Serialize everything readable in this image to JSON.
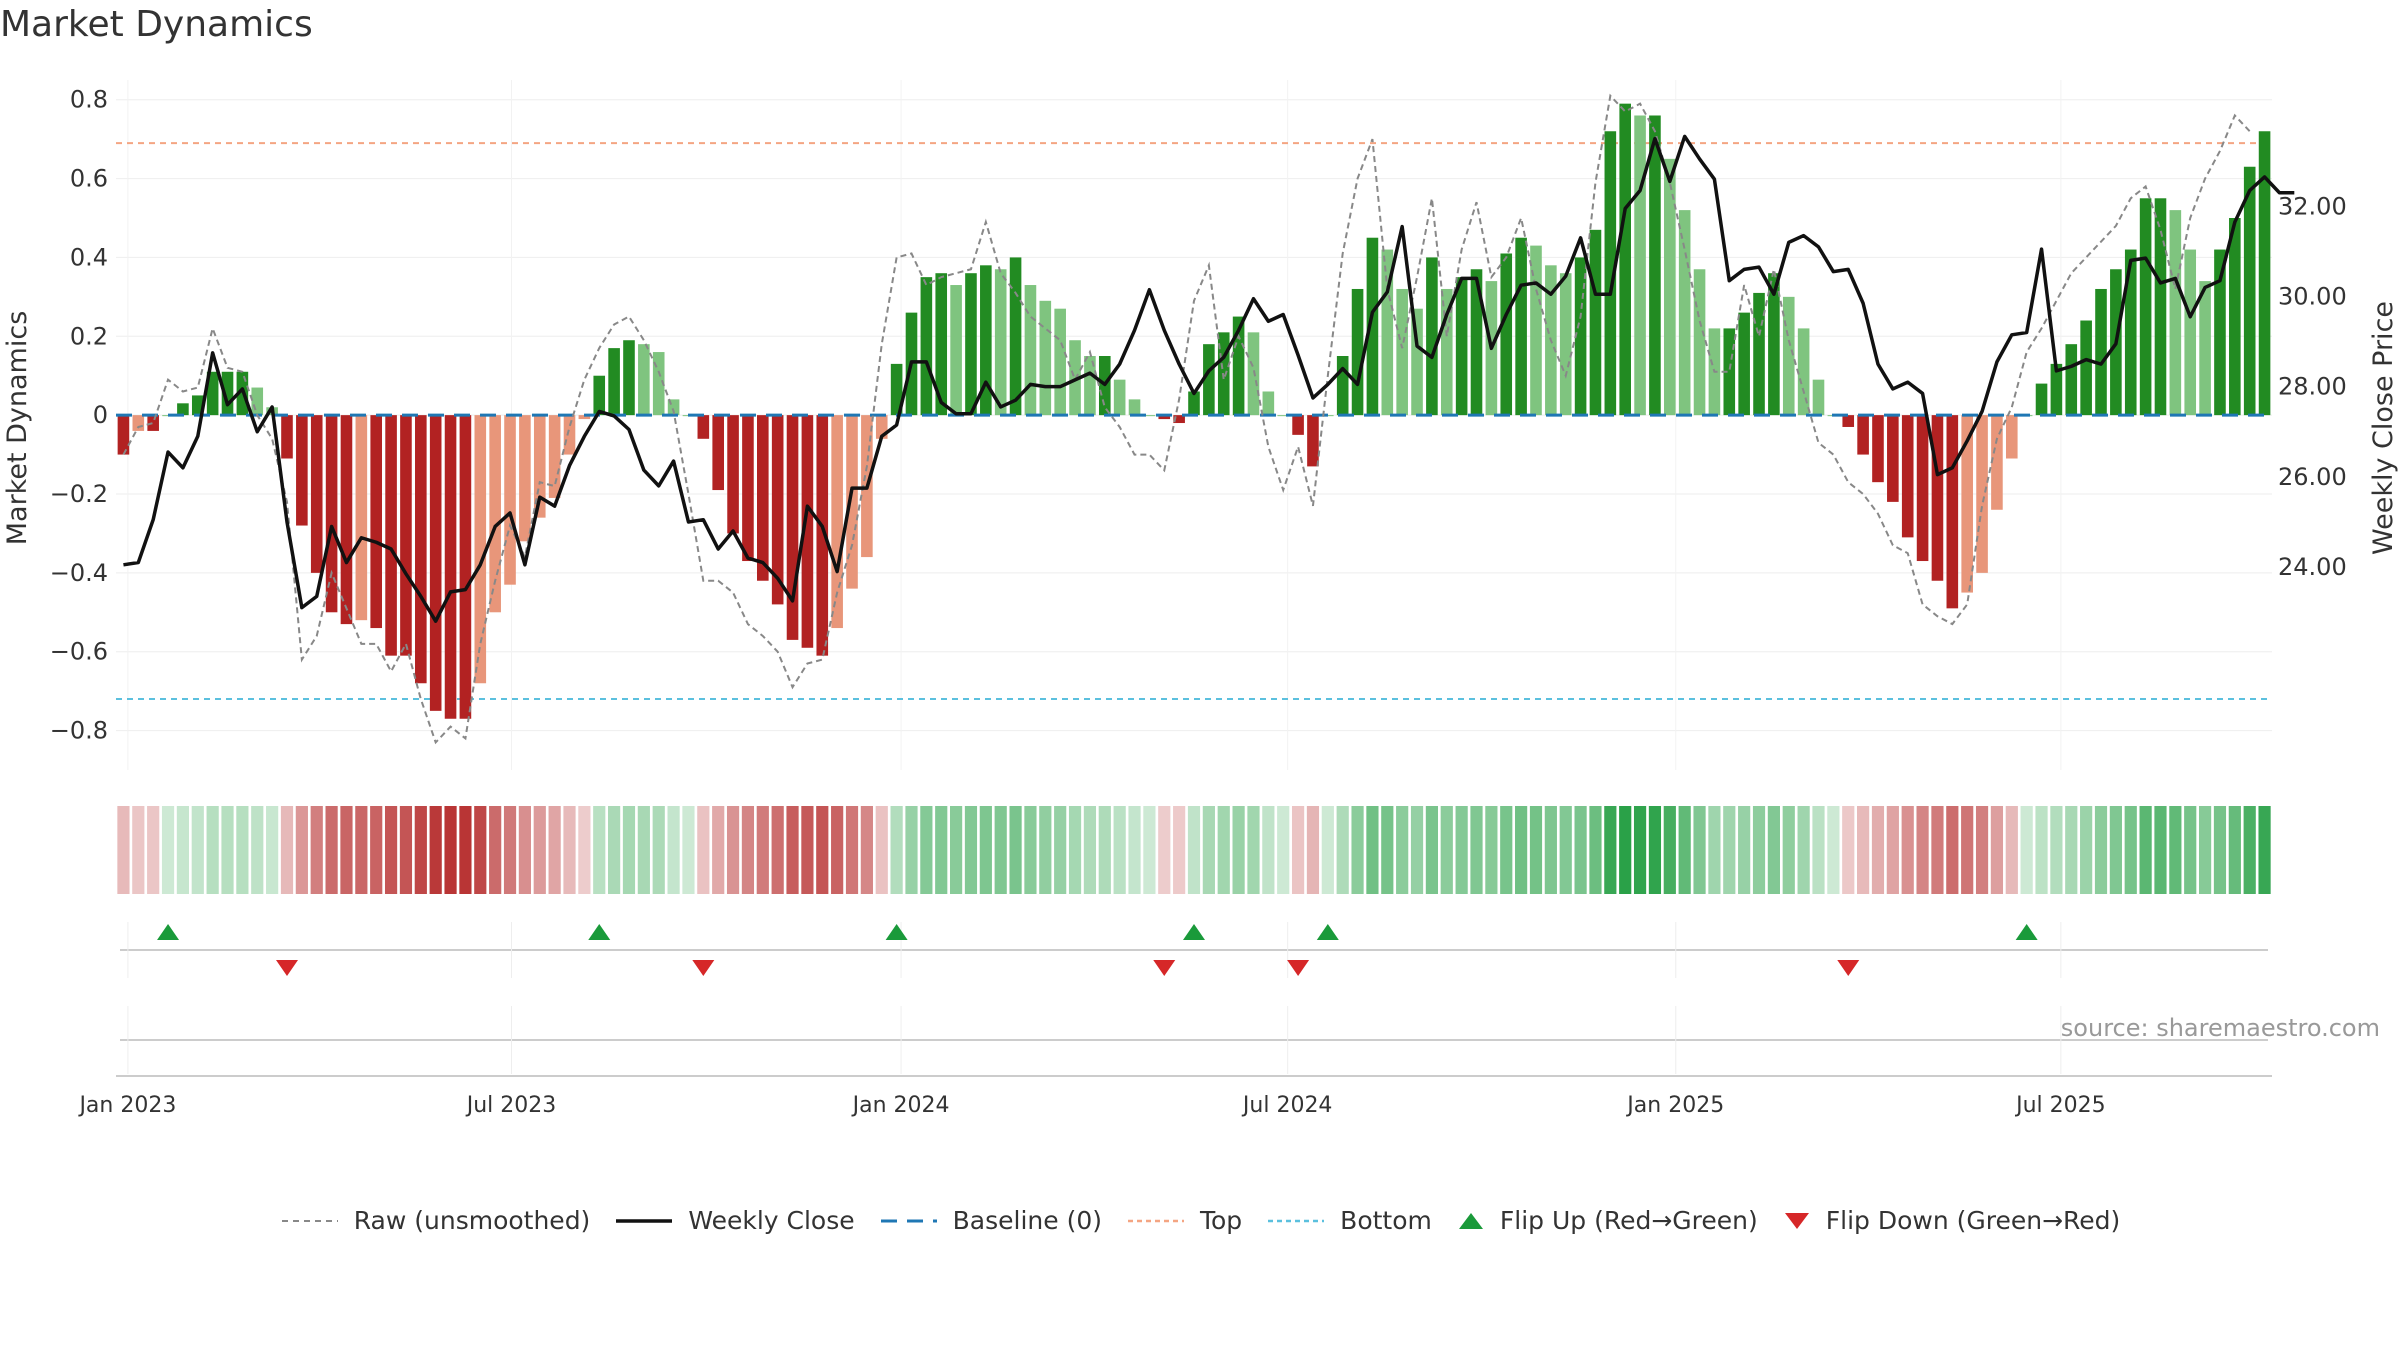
{
  "title": "Market Dynamics",
  "source": "source: sharemaestro.com",
  "legend": {
    "raw": "Raw (unsmoothed)",
    "close": "Weekly Close",
    "baseline": "Baseline (0)",
    "top": "Top",
    "bottom": "Bottom",
    "flip_up": "Flip Up (Red→Green)",
    "flip_down": "Flip Down (Green→Red)"
  },
  "colors": {
    "raw": "#888888",
    "close": "#111111",
    "baseline": "#1f77b4",
    "top": "#f4a582",
    "bottom": "#5bc0de",
    "flip_up": "#1a9a3a",
    "flip_down": "#d62728"
  },
  "chart_data": {
    "type": "bar",
    "start_date": "2022-12-30",
    "x_tick_labels": [
      "Jan 2023",
      "Jul 2023",
      "Jan 2024",
      "Jul 2024",
      "Jan 2025",
      "Jul 2025"
    ],
    "x_tick_weeks": [
      0.3,
      26.1,
      52.3,
      78.3,
      104.4,
      130.3
    ],
    "ylabel_left": "Market Dynamics",
    "ylabel_right": "Weekly Close Price",
    "ylim_left": [
      -0.9,
      0.85
    ],
    "ylim_right": [
      19.5,
      34.8
    ],
    "yticks_left": [
      0.8,
      0.6,
      0.4,
      0.2,
      0,
      -0.2,
      -0.4,
      -0.6,
      -0.8
    ],
    "ytick_labels_left": [
      "0.8",
      "0.6",
      "0.4",
      "0.2",
      "0",
      "−0.2",
      "−0.4",
      "−0.6",
      "−0.8"
    ],
    "yticks_right": [
      32,
      30,
      28,
      26,
      24
    ],
    "ytick_labels_right": [
      "32.00",
      "30.00",
      "28.00",
      "26.00",
      "24.00"
    ],
    "top_threshold": 0.69,
    "bottom_threshold": -0.72,
    "grid": true,
    "legend_position": "bottom",
    "momentum": [
      -0.1,
      -0.04,
      -0.04,
      0.0,
      0.03,
      0.05,
      0.11,
      0.11,
      0.11,
      0.07,
      0.02,
      -0.11,
      -0.28,
      -0.4,
      -0.5,
      -0.53,
      -0.52,
      -0.54,
      -0.61,
      -0.61,
      -0.68,
      -0.75,
      -0.77,
      -0.77,
      -0.68,
      -0.5,
      -0.43,
      -0.32,
      -0.26,
      -0.21,
      -0.1,
      -0.01,
      0.1,
      0.17,
      0.19,
      0.18,
      0.16,
      0.04,
      0.0,
      -0.06,
      -0.19,
      -0.3,
      -0.37,
      -0.42,
      -0.48,
      -0.57,
      -0.59,
      -0.61,
      -0.54,
      -0.44,
      -0.36,
      -0.06,
      0.13,
      0.26,
      0.35,
      0.36,
      0.33,
      0.36,
      0.38,
      0.37,
      0.4,
      0.33,
      0.29,
      0.27,
      0.19,
      0.15,
      0.15,
      0.09,
      0.04,
      0.0,
      -0.01,
      -0.02,
      0.06,
      0.18,
      0.21,
      0.25,
      0.21,
      0.06,
      0.0,
      -0.05,
      -0.13,
      0.0,
      0.15,
      0.32,
      0.45,
      0.42,
      0.32,
      0.27,
      0.4,
      0.32,
      0.35,
      0.37,
      0.34,
      0.41,
      0.45,
      0.43,
      0.38,
      0.36,
      0.4,
      0.47,
      0.72,
      0.79,
      0.76,
      0.76,
      0.65,
      0.52,
      0.37,
      0.22,
      0.22,
      0.26,
      0.31,
      0.36,
      0.3,
      0.22,
      0.09,
      0.0,
      -0.03,
      -0.1,
      -0.17,
      -0.22,
      -0.31,
      -0.37,
      -0.42,
      -0.49,
      -0.45,
      -0.4,
      -0.24,
      -0.11,
      0.0,
      0.08,
      0.13,
      0.18,
      0.24,
      0.32,
      0.37,
      0.42,
      0.55,
      0.55,
      0.52,
      0.42,
      0.34,
      0.42,
      0.5,
      0.63,
      0.72
    ],
    "raw": [
      -0.1,
      -0.03,
      -0.02,
      0.09,
      0.06,
      0.07,
      0.22,
      0.12,
      0.11,
      0.0,
      -0.06,
      -0.22,
      -0.62,
      -0.56,
      -0.4,
      -0.49,
      -0.58,
      -0.58,
      -0.65,
      -0.58,
      -0.72,
      -0.83,
      -0.79,
      -0.82,
      -0.58,
      -0.42,
      -0.28,
      -0.36,
      -0.17,
      -0.18,
      -0.03,
      0.09,
      0.17,
      0.23,
      0.25,
      0.19,
      0.11,
      0.01,
      -0.2,
      -0.42,
      -0.42,
      -0.45,
      -0.53,
      -0.56,
      -0.6,
      -0.69,
      -0.63,
      -0.62,
      -0.45,
      -0.33,
      -0.13,
      0.18,
      0.4,
      0.41,
      0.33,
      0.35,
      0.36,
      0.37,
      0.49,
      0.36,
      0.31,
      0.25,
      0.22,
      0.19,
      0.09,
      0.16,
      0.02,
      -0.03,
      -0.1,
      -0.1,
      -0.14,
      0.04,
      0.29,
      0.38,
      0.09,
      0.2,
      0.12,
      -0.08,
      -0.19,
      -0.08,
      -0.23,
      0.1,
      0.41,
      0.6,
      0.7,
      0.32,
      0.17,
      0.35,
      0.55,
      0.2,
      0.42,
      0.54,
      0.35,
      0.4,
      0.5,
      0.32,
      0.19,
      0.1,
      0.25,
      0.59,
      0.81,
      0.77,
      0.79,
      0.72,
      0.59,
      0.42,
      0.24,
      0.11,
      0.11,
      0.33,
      0.2,
      0.37,
      0.19,
      0.06,
      -0.07,
      -0.1,
      -0.17,
      -0.2,
      -0.25,
      -0.33,
      -0.35,
      -0.48,
      -0.51,
      -0.53,
      -0.48,
      -0.23,
      -0.06,
      0.02,
      0.16,
      0.22,
      0.29,
      0.36,
      0.4,
      0.44,
      0.48,
      0.55,
      0.58,
      0.47,
      0.32,
      0.5,
      0.6,
      0.67,
      0.76,
      0.72
    ],
    "weekly_close": [
      24.05,
      24.1,
      25.05,
      26.55,
      26.2,
      26.9,
      28.75,
      27.6,
      27.95,
      27.0,
      27.55,
      25.0,
      23.1,
      23.35,
      24.9,
      24.1,
      24.65,
      24.55,
      24.4,
      23.85,
      23.35,
      22.8,
      23.45,
      23.5,
      24.05,
      24.9,
      25.2,
      24.05,
      25.55,
      25.35,
      26.25,
      26.9,
      27.45,
      27.35,
      27.05,
      26.15,
      25.8,
      26.35,
      25.0,
      25.05,
      24.4,
      24.8,
      24.2,
      24.1,
      23.75,
      23.25,
      25.35,
      24.9,
      23.9,
      25.75,
      25.75,
      26.9,
      27.15,
      28.55,
      28.55,
      27.65,
      27.4,
      27.4,
      28.1,
      27.55,
      27.7,
      28.05,
      28.0,
      28.0,
      28.15,
      28.3,
      28.05,
      28.5,
      29.25,
      30.15,
      29.25,
      28.5,
      27.85,
      28.35,
      28.65,
      29.25,
      29.95,
      29.45,
      29.6,
      28.7,
      27.75,
      28.05,
      28.4,
      28.05,
      29.65,
      30.1,
      31.55,
      28.9,
      28.65,
      29.6,
      30.4,
      30.4,
      28.85,
      29.6,
      30.25,
      30.3,
      30.05,
      30.45,
      31.3,
      30.05,
      30.05,
      31.95,
      32.35,
      33.5,
      32.55,
      33.55,
      33.05,
      32.6,
      30.35,
      30.6,
      30.65,
      30.05,
      31.2,
      31.35,
      31.1,
      30.55,
      30.6,
      29.85,
      28.5,
      27.95,
      28.1,
      27.85,
      26.05,
      26.2,
      26.8,
      27.45,
      28.55,
      29.15,
      29.2,
      31.05,
      28.35,
      28.45,
      28.6,
      28.5,
      28.95,
      30.8,
      30.85,
      30.3,
      30.4,
      29.55,
      30.2,
      30.35,
      31.65,
      32.35,
      32.65,
      32.3,
      32.3
    ]
  }
}
